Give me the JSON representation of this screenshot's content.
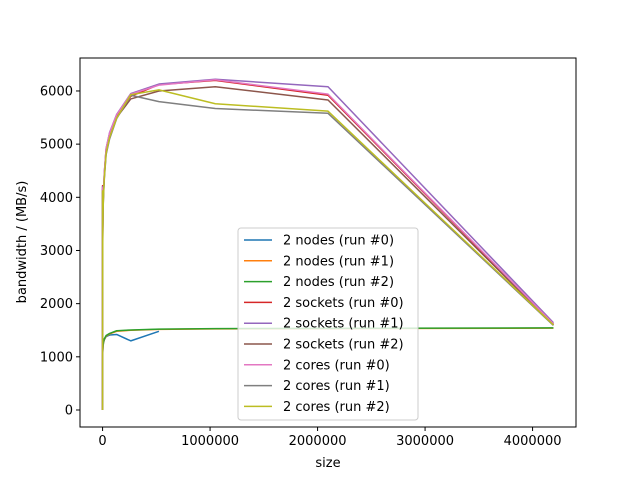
{
  "chart_data": {
    "type": "line",
    "title": "",
    "xlabel": "size",
    "ylabel": "bandwidth / (MB/s)",
    "xlim": [
      -210000,
      4404000
    ],
    "ylim": [
      -320,
      6620
    ],
    "xticks": [
      0,
      1000000,
      2000000,
      3000000,
      4000000
    ],
    "xtick_labels": [
      "0",
      "1000000",
      "2000000",
      "3000000",
      "4000000"
    ],
    "yticks": [
      0,
      1000,
      2000,
      3000,
      4000,
      5000,
      6000
    ],
    "ytick_labels": [
      "0",
      "1000",
      "2000",
      "3000",
      "4000",
      "5000",
      "6000"
    ],
    "grid": false,
    "legend_position": "lower-center",
    "colors": [
      "#1f77b4",
      "#ff7f0e",
      "#2ca02c",
      "#d62728",
      "#9467bd",
      "#8c564b",
      "#e377c2",
      "#7f7f7f",
      "#bcbd22"
    ],
    "series": [
      {
        "name": "2 nodes (run #0)",
        "x": [
          8,
          64,
          512,
          1024,
          2048,
          4096,
          8192,
          16384,
          32768,
          65536,
          131072,
          262144,
          524288
        ],
        "y": [
          0,
          870,
          950,
          1010,
          1100,
          1180,
          1260,
          1320,
          1380,
          1410,
          1420,
          1300,
          1480
        ]
      },
      {
        "name": "2 nodes (run #1)",
        "x": [
          8,
          64,
          512,
          1024,
          2048,
          4096,
          8192,
          16384,
          32768,
          65536,
          131072,
          262144,
          524288,
          1048576,
          2097152,
          4194304
        ],
        "y": [
          0,
          880,
          960,
          1020,
          1110,
          1190,
          1270,
          1330,
          1390,
          1430,
          1480,
          1500,
          1515,
          1525,
          1530,
          1540
        ]
      },
      {
        "name": "2 nodes (run #2)",
        "x": [
          8,
          64,
          512,
          1024,
          2048,
          4096,
          8192,
          16384,
          32768,
          65536,
          131072,
          262144,
          524288,
          1048576,
          2097152,
          4194304
        ],
        "y": [
          0,
          890,
          970,
          1030,
          1120,
          1200,
          1280,
          1340,
          1400,
          1440,
          1490,
          1505,
          1520,
          1530,
          1535,
          1545
        ]
      },
      {
        "name": "2 sockets (run #0)",
        "x": [
          8,
          64,
          512,
          1024,
          2048,
          4096,
          8192,
          16384,
          32768,
          65536,
          131072,
          262144,
          524288,
          1048576,
          2097152,
          4194304
        ],
        "y": [
          0,
          4220,
          2300,
          2900,
          3400,
          3800,
          4100,
          4450,
          4900,
          5200,
          5540,
          5900,
          6120,
          6200,
          5920,
          1610
        ]
      },
      {
        "name": "2 sockets (run #1)",
        "x": [
          8,
          64,
          512,
          1024,
          2048,
          4096,
          8192,
          16384,
          32768,
          65536,
          131072,
          262144,
          524288,
          1048576,
          2097152,
          4194304
        ],
        "y": [
          0,
          4200,
          2350,
          2950,
          3420,
          3820,
          4120,
          4470,
          4920,
          5220,
          5560,
          5950,
          6130,
          6220,
          6080,
          1640
        ]
      },
      {
        "name": "2 sockets (run #2)",
        "x": [
          8,
          64,
          512,
          1024,
          2048,
          4096,
          8192,
          16384,
          32768,
          65536,
          131072,
          262144,
          524288,
          1048576,
          2097152,
          4194304
        ],
        "y": [
          0,
          4150,
          2250,
          2850,
          3350,
          3750,
          4050,
          4400,
          4850,
          5150,
          5500,
          5850,
          6000,
          6080,
          5830,
          1600
        ]
      },
      {
        "name": "2 cores (run #0)",
        "x": [
          8,
          64,
          512,
          1024,
          2048,
          4096,
          8192,
          16384,
          32768,
          65536,
          131072,
          262144,
          524288,
          1048576,
          2097152,
          4194304
        ],
        "y": [
          0,
          4180,
          2320,
          2920,
          3410,
          3810,
          4110,
          4460,
          4910,
          5210,
          5550,
          5940,
          6110,
          6210,
          5940,
          1620
        ]
      },
      {
        "name": "2 cores (run #1)",
        "x": [
          8,
          64,
          512,
          1024,
          2048,
          4096,
          8192,
          16384,
          32768,
          65536,
          131072,
          262144,
          524288,
          1048576,
          2097152,
          4194304
        ],
        "y": [
          0,
          4100,
          2200,
          2800,
          3300,
          3700,
          4000,
          4350,
          4800,
          5100,
          5480,
          5920,
          5800,
          5670,
          5580,
          1590
        ]
      },
      {
        "name": "2 cores (run #2)",
        "x": [
          8,
          64,
          512,
          1024,
          2048,
          4096,
          8192,
          16384,
          32768,
          65536,
          131072,
          262144,
          524288,
          1048576,
          2097152,
          4194304
        ],
        "y": [
          0,
          4120,
          2220,
          2820,
          3320,
          3720,
          4020,
          4380,
          4830,
          5130,
          5490,
          5930,
          6020,
          5760,
          5620,
          1600
        ]
      }
    ]
  }
}
